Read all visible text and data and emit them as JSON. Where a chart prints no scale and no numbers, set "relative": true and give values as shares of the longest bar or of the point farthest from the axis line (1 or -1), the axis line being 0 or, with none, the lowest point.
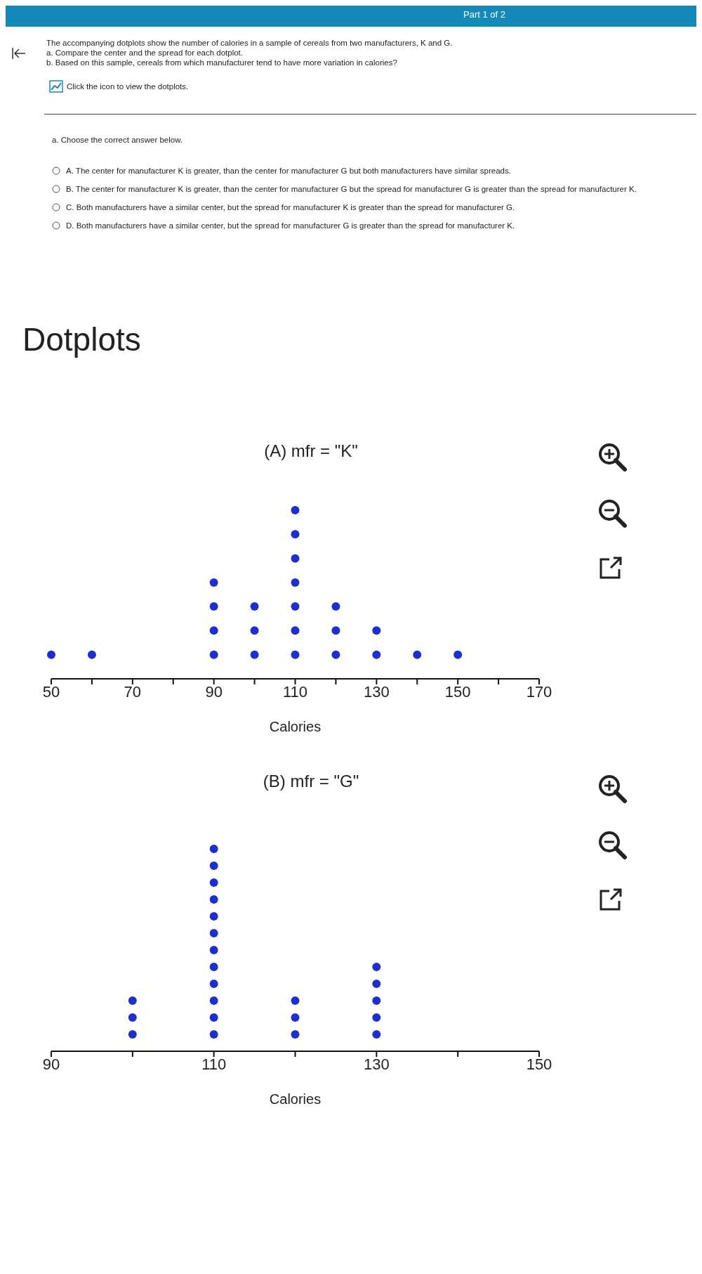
{
  "chart_data": [
    {
      "type": "scatter",
      "title": "(A) mfr = \"K\"",
      "xlabel": "Calories",
      "marker": "circle",
      "tick_labels": "x",
      "relative": true,
      "annotations": [
        "Part 1 of 2",
        "The accompanying dotplots show the number of calories in a sample of cereals from two manufacturers, K and G.",
        "a. Compare the center and the spread for each dotplot.",
        "b. Based on this sample, cereals from which manufacturer tend to have more variation in calories?",
        "Click the icon to view the dotplots.",
        "a. Choose the correct answer below.",
        "A.  The center for manufacturer K is greater, than the center for manufacturer G but both manufacturers have similar spreads.",
        "B.  The center for manufacturer K is greater, than the center for manufacturer G but the spread for manufacturer G is greater than the spread for manufacturer K.",
        "C.  Both manufacturers have a similar center, but the spread for manufacturer K is greater than the spread for manufacturer G.",
        "D.  Both manufacturers have a similar center, but the spread for manufacturer G is greater than the spread for manufacturer K.",
        "Dotplots"
      ],
      "x": [
        50,
        60,
        90,
        90,
        90,
        90,
        100,
        100,
        100,
        110,
        110,
        110,
        110,
        110,
        110,
        110,
        120,
        120,
        120,
        130,
        130,
        140,
        150
      ],
      "values": [
        0.143,
        0.143,
        0.143,
        0.286,
        0.429,
        0.571,
        0.143,
        0.286,
        0.429,
        0.143,
        0.286,
        0.429,
        0.571,
        0.714,
        0.857,
        1,
        0.143,
        0.286,
        0.429,
        0.143,
        0.286,
        0.143,
        0.143
      ],
      "color": "#1c2fd0",
      "xlim": [
        50,
        170
      ],
      "xticks": [
        50,
        {
          "value": 60,
          "label": null
        },
        70,
        {
          "value": 80,
          "label": null
        },
        90,
        {
          "value": 100,
          "label": null
        },
        110,
        {
          "value": 120,
          "label": null
        },
        130,
        {
          "value": 140,
          "label": null
        },
        150,
        {
          "value": 160,
          "label": null
        },
        170
      ]
    },
    {
      "type": "scatter",
      "title": "(B) mfr = \"G\"",
      "xlabel": "Calories",
      "marker": "circle",
      "tick_labels": "x",
      "relative": true,
      "x": [
        100,
        100,
        100,
        110,
        110,
        110,
        110,
        110,
        110,
        110,
        110,
        110,
        110,
        110,
        110,
        120,
        120,
        120,
        130,
        130,
        130,
        130,
        130
      ],
      "values": [
        0.083,
        0.167,
        0.25,
        0.083,
        0.167,
        0.25,
        0.333,
        0.417,
        0.5,
        0.583,
        0.667,
        0.75,
        0.833,
        0.917,
        1,
        0.083,
        0.167,
        0.25,
        0.083,
        0.167,
        0.25,
        0.333,
        0.417
      ],
      "color": "#1c2fd0",
      "xlim": [
        90,
        150
      ],
      "xticks": [
        90,
        {
          "value": 100,
          "label": null
        },
        110,
        {
          "value": 120,
          "label": null
        },
        130,
        {
          "value": 140,
          "label": null
        },
        150
      ]
    }
  ]
}
